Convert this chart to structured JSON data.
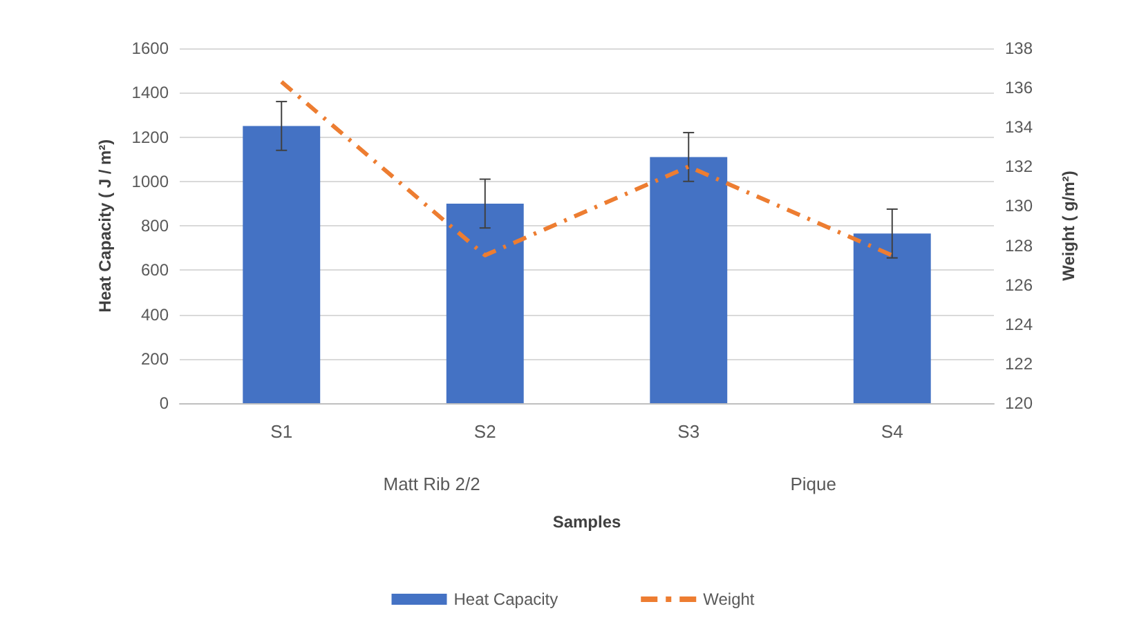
{
  "chart_data": {
    "type": "bar",
    "xlabel": "Samples",
    "ylabel": "Heat Capacity ( J / m²)",
    "y2label": "Weight ( g/m²)",
    "categories": [
      "S1",
      "S2",
      "S3",
      "S4"
    ],
    "annotations": [
      "Matt Rib 2/2",
      "Pique"
    ],
    "series": [
      {
        "name": "Heat Capacity",
        "color": "#4472c4",
        "values": [
          1250,
          900,
          1110,
          765
        ],
        "errors": [
          110,
          110,
          110,
          110
        ]
      },
      {
        "name": "Weight",
        "type": "line",
        "axis": "y2",
        "color": "#ed7d31",
        "line_style": "dashed",
        "marker": "none",
        "values": [
          136.3,
          127.5,
          132,
          127.5
        ]
      }
    ],
    "ylim": [
      0,
      1600
    ],
    "yticks": [
      0,
      200,
      400,
      600,
      800,
      1000,
      1200,
      1400,
      1600
    ],
    "y2lim": [
      120,
      138
    ],
    "y2ticks": [
      120,
      122,
      124,
      126,
      128,
      130,
      132,
      134,
      136,
      138
    ],
    "grid": "y",
    "legend": "bottom"
  }
}
